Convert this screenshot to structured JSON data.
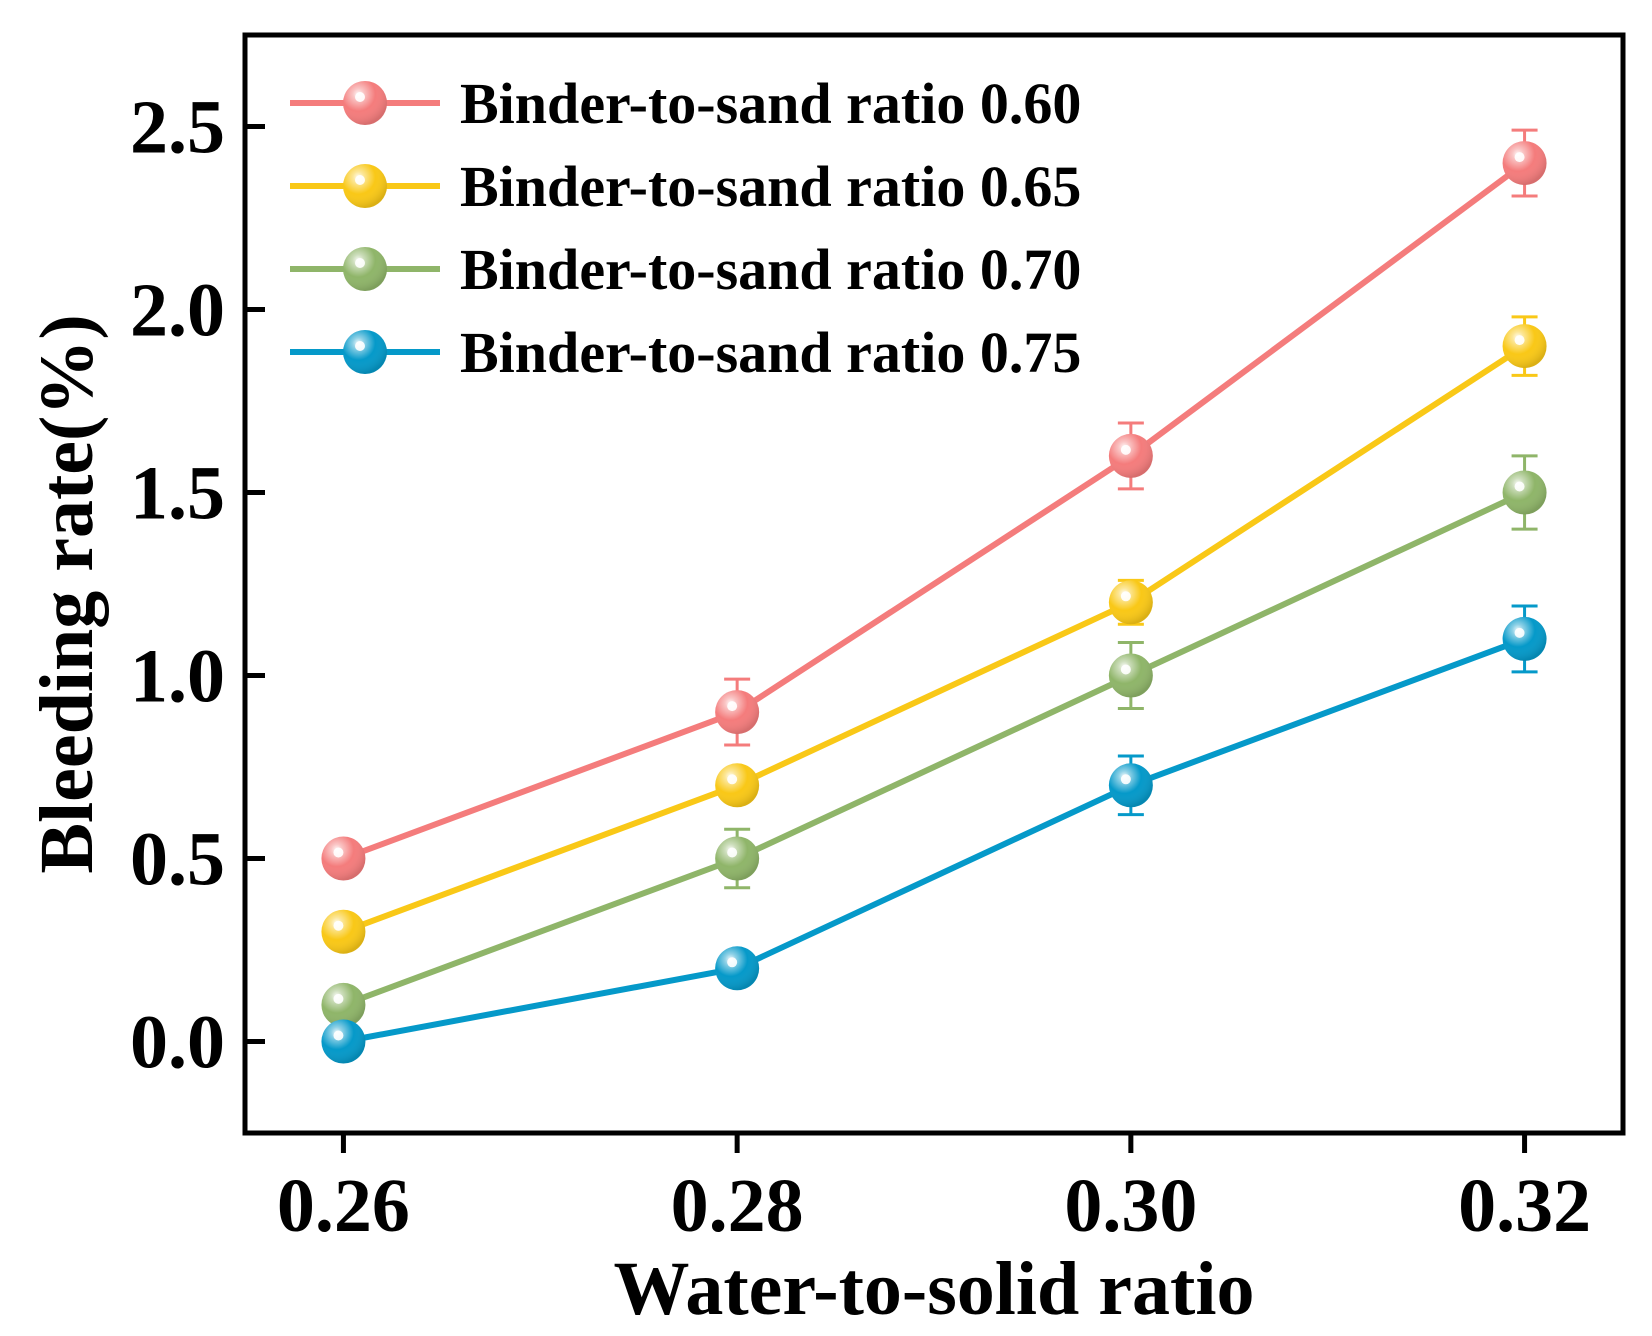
{
  "chart_data": {
    "type": "line",
    "title": "",
    "xlabel": "Water-to-solid ratio",
    "ylabel": "Bleeding rate(%)",
    "x": [
      0.26,
      0.28,
      0.3,
      0.32
    ],
    "x_tick_labels": [
      "0.26",
      "0.28",
      "0.30",
      "0.32"
    ],
    "xlim": [
      0.255,
      0.325
    ],
    "ylim": [
      -0.25,
      2.75
    ],
    "y_ticks": [
      0.0,
      0.5,
      1.0,
      1.5,
      2.0,
      2.5
    ],
    "y_tick_labels": [
      "0.0",
      "0.5",
      "1.0",
      "1.5",
      "2.0",
      "2.5"
    ],
    "grid": false,
    "legend_position": "top-left",
    "series": [
      {
        "name": "Binder-to-sand ratio 0.60",
        "color": "#F47C7C",
        "values": [
          0.5,
          0.9,
          1.6,
          2.4
        ],
        "errors": [
          0.0,
          0.09,
          0.09,
          0.09
        ]
      },
      {
        "name": "Binder-to-sand ratio 0.65",
        "color": "#F9C817",
        "values": [
          0.3,
          0.7,
          1.2,
          1.9
        ],
        "errors": [
          0.0,
          0.0,
          0.06,
          0.08
        ]
      },
      {
        "name": "Binder-to-sand ratio 0.70",
        "color": "#8FB569",
        "values": [
          0.1,
          0.5,
          1.0,
          1.5
        ],
        "errors": [
          0.0,
          0.08,
          0.09,
          0.1
        ]
      },
      {
        "name": "Binder-to-sand ratio 0.75",
        "color": "#0599C9",
        "values": [
          0.0,
          0.2,
          0.7,
          1.1
        ],
        "errors": [
          0.0,
          0.0,
          0.08,
          0.09
        ]
      }
    ]
  }
}
